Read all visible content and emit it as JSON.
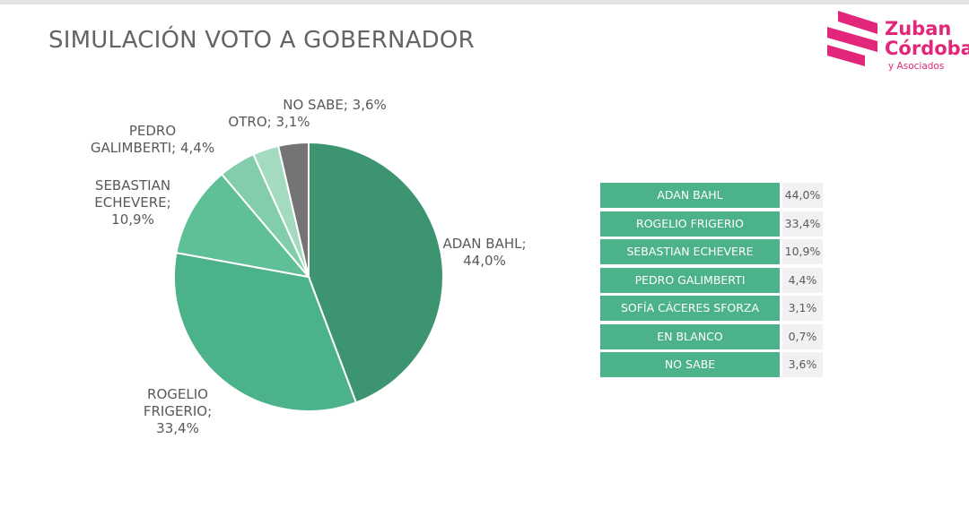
{
  "title": "SIMULACIÓN VOTO A GOBERNADOR",
  "logo": {
    "line1": "Zuban",
    "line2": "Córdoba",
    "line3": "y Asociados",
    "color": "#e2267a"
  },
  "chart_data": {
    "type": "pie",
    "title": "SIMULACIÓN VOTO A GOBERNADOR",
    "start_angle_deg": 0,
    "direction": "clockwise",
    "slices": [
      {
        "label_lines": [
          "ADAN BAHL;",
          "44,0%"
        ],
        "value": 44.0,
        "color": "#3d9470"
      },
      {
        "label_lines": [
          "ROGELIO",
          "FRIGERIO;",
          "33,4%"
        ],
        "value": 33.4,
        "color": "#4cb28a"
      },
      {
        "label_lines": [
          "SEBASTIAN",
          "ECHEVERE;",
          "10,9%"
        ],
        "value": 10.9,
        "color": "#5fc098"
      },
      {
        "label_lines": [
          "PEDRO",
          "GALIMBERTI; 4,4%"
        ],
        "value": 4.4,
        "color": "#82cdaa"
      },
      {
        "label_lines": [
          "OTRO; 3,1%"
        ],
        "value": 3.1,
        "color": "#a4dbc0"
      },
      {
        "label_lines": [
          "NO SABE; 3,6%"
        ],
        "value": 3.6,
        "color": "#747474"
      }
    ]
  },
  "table": {
    "rows": [
      {
        "name": "ADAN BAHL",
        "value": "44,0%"
      },
      {
        "name": "ROGELIO FRIGERIO",
        "value": "33,4%"
      },
      {
        "name": "SEBASTIAN ECHEVERE",
        "value": "10,9%"
      },
      {
        "name": "PEDRO GALIMBERTI",
        "value": "4,4%"
      },
      {
        "name": "SOFÍA CÁCERES SFORZA",
        "value": "3,1%"
      },
      {
        "name": "EN BLANCO",
        "value": "0,7%"
      },
      {
        "name": "NO SABE",
        "value": "3,6%"
      }
    ]
  }
}
